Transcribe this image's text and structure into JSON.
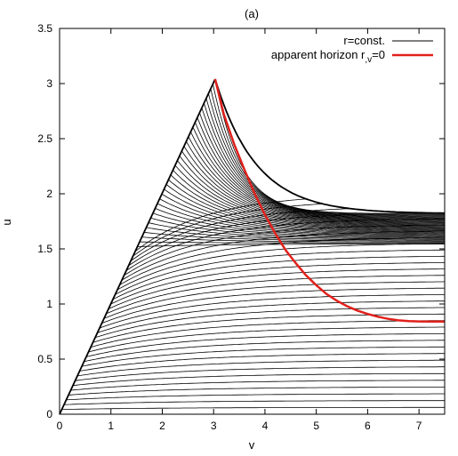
{
  "chart_data": {
    "type": "line",
    "title": "(a)",
    "xlabel": "v",
    "ylabel": "u",
    "xlim": [
      0,
      7.5
    ],
    "ylim": [
      0,
      3.5
    ],
    "xticks": [
      0,
      1,
      2,
      3,
      4,
      5,
      6,
      7
    ],
    "yticks": [
      0,
      0.5,
      1,
      1.5,
      2,
      2.5,
      3,
      3.5
    ],
    "grid": false,
    "legend_position": "top-right",
    "apex": {
      "v": 3.03,
      "u": 3.04
    },
    "series": [
      {
        "name": "r=const.",
        "color": "#000000",
        "description_values": {
          "count": 70,
          "boundary_left": [
            [
              0,
              0
            ],
            [
              3.03,
              3.04
            ]
          ],
          "boundary_top": [
            [
              3.03,
              3.04
            ],
            [
              3.5,
              2.55
            ],
            [
              4.0,
              2.25
            ],
            [
              5.0,
              1.98
            ],
            [
              6.0,
              1.88
            ],
            [
              7.5,
              1.83
            ]
          ]
        }
      },
      {
        "name": "apparent horizon r,v=0",
        "color": "#e0201b",
        "x": [
          3.03,
          3.2,
          3.4,
          3.6,
          3.8,
          4.0,
          4.2,
          4.4,
          4.6,
          4.8,
          5.0,
          5.2,
          5.4,
          5.6,
          5.8,
          6.0,
          6.2,
          6.4,
          6.6,
          6.8,
          7.0,
          7.2,
          7.5
        ],
        "y": [
          3.04,
          2.72,
          2.45,
          2.22,
          2.0,
          1.81,
          1.64,
          1.49,
          1.37,
          1.26,
          1.17,
          1.09,
          1.03,
          0.98,
          0.94,
          0.91,
          0.885,
          0.865,
          0.852,
          0.845,
          0.842,
          0.841,
          0.84
        ]
      }
    ],
    "legend": [
      {
        "label": "r=const.",
        "color": "#000000"
      },
      {
        "label": "apparent horizon r",
        "subscript": ",v",
        "suffix": "=0",
        "color": "#e0201b"
      }
    ]
  }
}
